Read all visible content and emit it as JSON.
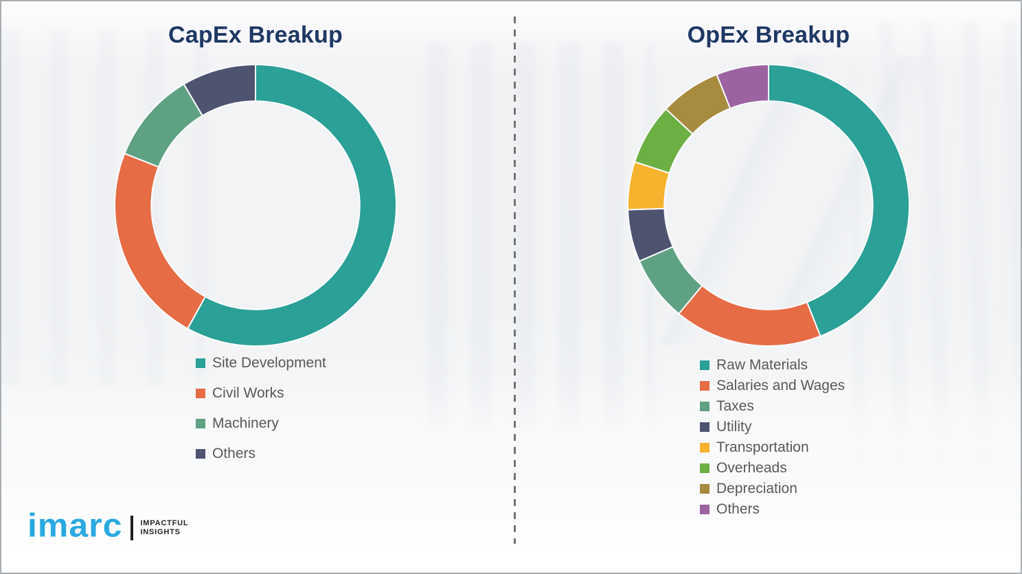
{
  "page": {
    "left_panel_title": "CapEx Breakup",
    "right_panel_title": "OpEx Breakup"
  },
  "chart_data": [
    {
      "type": "pie",
      "subtype": "donut",
      "title": "CapEx Breakup",
      "labels": [
        "Site Development",
        "Civil Works",
        "Machinery",
        "Others"
      ],
      "values": [
        58,
        23,
        10.5,
        8.5
      ],
      "colors": [
        "#2aa096",
        "#e66c45",
        "#5fa183",
        "#4e5370"
      ],
      "units": "percent",
      "start_angle_deg": 0,
      "direction": "clockwise",
      "inner_radius_ratio": 0.74,
      "legend_position": "below-left",
      "segment_gap_color": "#fbfcfd"
    },
    {
      "type": "pie",
      "subtype": "donut",
      "title": "OpEx Breakup",
      "labels": [
        "Raw Materials",
        "Salaries and Wages",
        "Taxes",
        "Utility",
        "Transportation",
        "Overheads",
        "Depreciation",
        "Others"
      ],
      "values": [
        44,
        17,
        7.5,
        6,
        5.5,
        7,
        7,
        6
      ],
      "colors": [
        "#2aa096",
        "#e66c45",
        "#5fa183",
        "#4e5370",
        "#f6b32e",
        "#6cb044",
        "#a78b3e",
        "#9d63a1"
      ],
      "units": "percent",
      "start_angle_deg": 0,
      "direction": "clockwise",
      "inner_radius_ratio": 0.74,
      "legend_position": "below-left",
      "segment_gap_color": "#fbfcfd"
    }
  ],
  "logo": {
    "brand": "imarc",
    "tagline_line1": "IMPACTFUL",
    "tagline_line2": "INSIGHTS",
    "brand_color": "#2aa9e0"
  },
  "style": {
    "title_color": "#1f3864",
    "legend_text_color": "#595959",
    "divider_color": "#737373",
    "border_color": "#aaadb0"
  }
}
